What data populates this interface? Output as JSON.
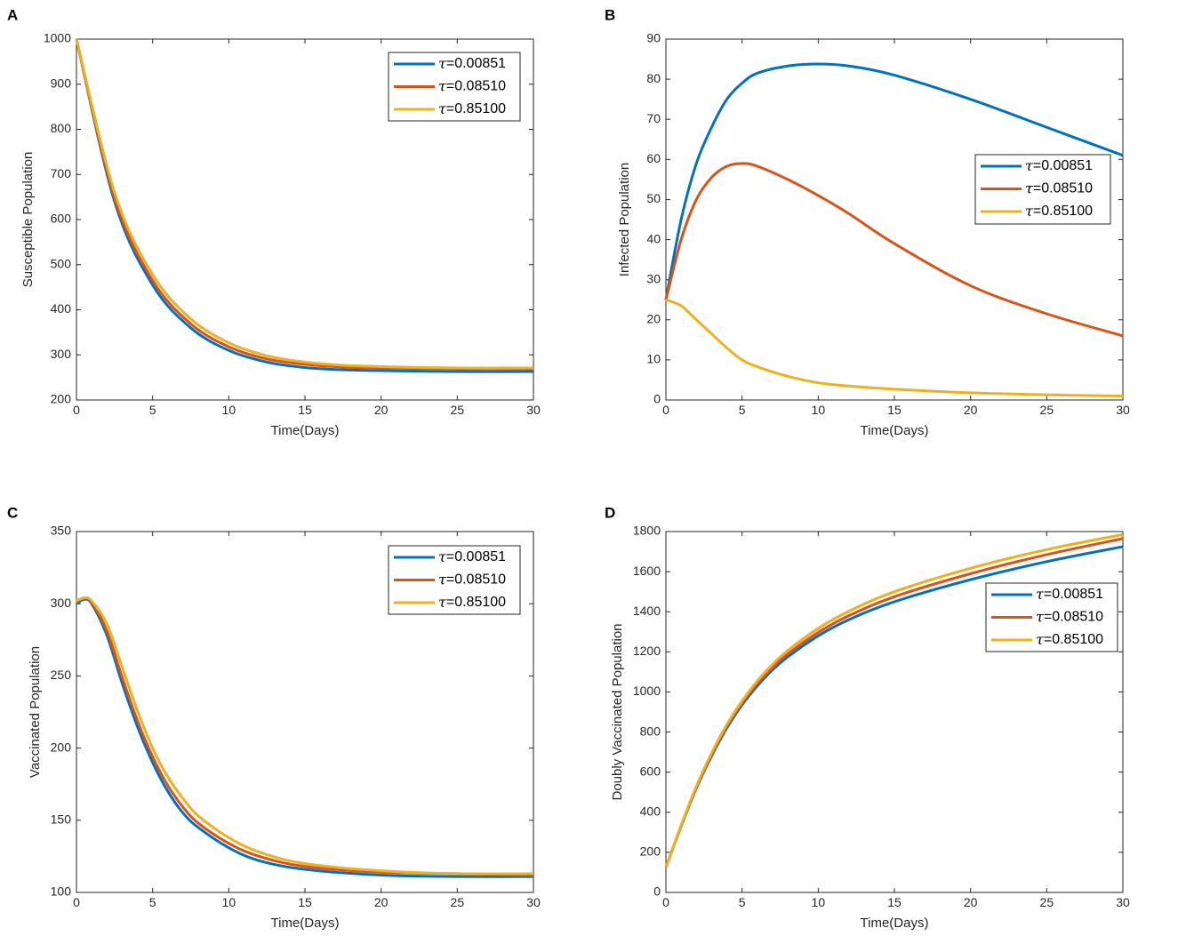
{
  "chart_data": [
    {
      "panel": "A",
      "type": "line",
      "title": "",
      "xlabel": "Time(Days)",
      "ylabel": "Susceptible Population",
      "xlim": [
        0,
        30
      ],
      "ylim": [
        200,
        1000
      ],
      "xticks": [
        0,
        5,
        10,
        15,
        20,
        25,
        30
      ],
      "yticks": [
        200,
        300,
        400,
        500,
        600,
        700,
        800,
        900,
        1000
      ],
      "legend_position": "top-right",
      "x": [
        0,
        2.5,
        5,
        7.5,
        10,
        12.5,
        15,
        17.5,
        20,
        25,
        30
      ],
      "series": [
        {
          "name": "τ=0.00851",
          "tau_symbol": "τ",
          "tau_value": "=0.00851",
          "color": "#0072BD",
          "values": [
            1000,
            640,
            455,
            360,
            310,
            284,
            272,
            267,
            265,
            263,
            263
          ]
        },
        {
          "name": "τ=0.08510",
          "tau_symbol": "τ",
          "tau_value": "=0.08510",
          "color": "#D95319",
          "values": [
            1000,
            648,
            465,
            369,
            318,
            291,
            279,
            273,
            271,
            269,
            269
          ]
        },
        {
          "name": "τ=0.85100",
          "tau_symbol": "τ",
          "tau_value": "=0.85100",
          "color": "#EDB120",
          "values": [
            1000,
            660,
            478,
            380,
            327,
            298,
            284,
            277,
            274,
            271,
            271
          ]
        }
      ]
    },
    {
      "panel": "B",
      "type": "line",
      "title": "",
      "xlabel": "Time(Days)",
      "ylabel": "Infected Population",
      "xlim": [
        0,
        30
      ],
      "ylim": [
        0,
        90
      ],
      "xticks": [
        0,
        5,
        10,
        15,
        20,
        25,
        30
      ],
      "yticks": [
        0,
        10,
        20,
        30,
        40,
        50,
        60,
        70,
        80,
        90
      ],
      "legend_position": "right",
      "x": [
        0,
        1,
        2,
        3,
        4,
        5,
        6,
        8,
        10,
        12,
        15,
        20,
        25,
        30
      ],
      "series": [
        {
          "name": "τ=0.00851",
          "tau_symbol": "τ",
          "tau_value": "=0.00851",
          "color": "#0072BD",
          "values": [
            25,
            45,
            59,
            68,
            75,
            79,
            81.5,
            83.3,
            83.8,
            83.3,
            81,
            75,
            68,
            61
          ]
        },
        {
          "name": "τ=0.08510",
          "tau_symbol": "τ",
          "tau_value": "=0.08510",
          "color": "#D95319",
          "values": [
            25,
            40,
            50,
            55.5,
            58.3,
            59,
            58.3,
            55,
            51,
            46.5,
            39,
            28.5,
            21.5,
            16
          ]
        },
        {
          "name": "τ=0.85100",
          "tau_symbol": "τ",
          "tau_value": "=0.85100",
          "color": "#EDB120",
          "values": [
            25,
            23.5,
            20,
            16.5,
            13,
            10,
            8.3,
            5.9,
            4.3,
            3.5,
            2.7,
            1.8,
            1.3,
            1
          ]
        }
      ]
    },
    {
      "panel": "C",
      "type": "line",
      "title": "",
      "xlabel": "Time(Days)",
      "ylabel": "Vaccinated Population",
      "xlim": [
        0,
        30
      ],
      "ylim": [
        100,
        350
      ],
      "xticks": [
        0,
        5,
        10,
        15,
        20,
        25,
        30
      ],
      "yticks": [
        100,
        150,
        200,
        250,
        300,
        350
      ],
      "legend_position": "top-right",
      "x": [
        0,
        0.5,
        1,
        2,
        3,
        4,
        5,
        6,
        7,
        8,
        10,
        12,
        15,
        20,
        25,
        30
      ],
      "series": [
        {
          "name": "τ=0.00851",
          "tau_symbol": "τ",
          "tau_value": "=0.00851",
          "color": "#0072BD",
          "values": [
            300,
            303,
            300,
            278,
            245,
            215,
            190,
            170,
            155,
            145,
            131,
            122,
            116,
            112,
            111,
            111
          ]
        },
        {
          "name": "τ=0.08510",
          "tau_symbol": "τ",
          "tau_value": "=0.08510",
          "color": "#D95319",
          "values": [
            301,
            304,
            301,
            281,
            249,
            219,
            194,
            174,
            159,
            148,
            134,
            125,
            118,
            114,
            113,
            112
          ]
        },
        {
          "name": "τ=0.85100",
          "tau_symbol": "τ",
          "tau_value": "=0.85100",
          "color": "#EDB120",
          "values": [
            302,
            304,
            302,
            286,
            256,
            226,
            200,
            180,
            165,
            153,
            138,
            128,
            120,
            115,
            113,
            113
          ]
        }
      ]
    },
    {
      "panel": "D",
      "type": "line",
      "title": "",
      "xlabel": "Time(Days)",
      "ylabel": "Doubly Vaccinated Population",
      "xlim": [
        0,
        30
      ],
      "ylim": [
        0,
        1800
      ],
      "xticks": [
        0,
        5,
        10,
        15,
        20,
        25,
        30
      ],
      "yticks": [
        0,
        200,
        400,
        600,
        800,
        1000,
        1200,
        1400,
        1600,
        1800
      ],
      "legend_position": "right",
      "x": [
        0,
        1,
        2,
        3,
        4,
        5,
        6,
        7,
        8,
        10,
        12,
        15,
        20,
        25,
        30
      ],
      "series": [
        {
          "name": "τ=0.00851",
          "tau_symbol": "τ",
          "tau_value": "=0.00851",
          "color": "#0072BD",
          "values": [
            125,
            330,
            520,
            680,
            820,
            935,
            1030,
            1110,
            1175,
            1280,
            1360,
            1450,
            1560,
            1650,
            1725
          ]
        },
        {
          "name": "τ=0.08510",
          "tau_symbol": "τ",
          "tau_value": "=0.08510",
          "color": "#D95319",
          "values": [
            125,
            332,
            525,
            688,
            830,
            945,
            1042,
            1122,
            1190,
            1297,
            1380,
            1475,
            1590,
            1685,
            1765
          ]
        },
        {
          "name": "τ=0.85100",
          "tau_symbol": "τ",
          "tau_value": "=0.85100",
          "color": "#EDB120",
          "values": [
            125,
            335,
            530,
            695,
            838,
            955,
            1055,
            1137,
            1207,
            1317,
            1402,
            1500,
            1617,
            1710,
            1785
          ]
        }
      ]
    }
  ]
}
